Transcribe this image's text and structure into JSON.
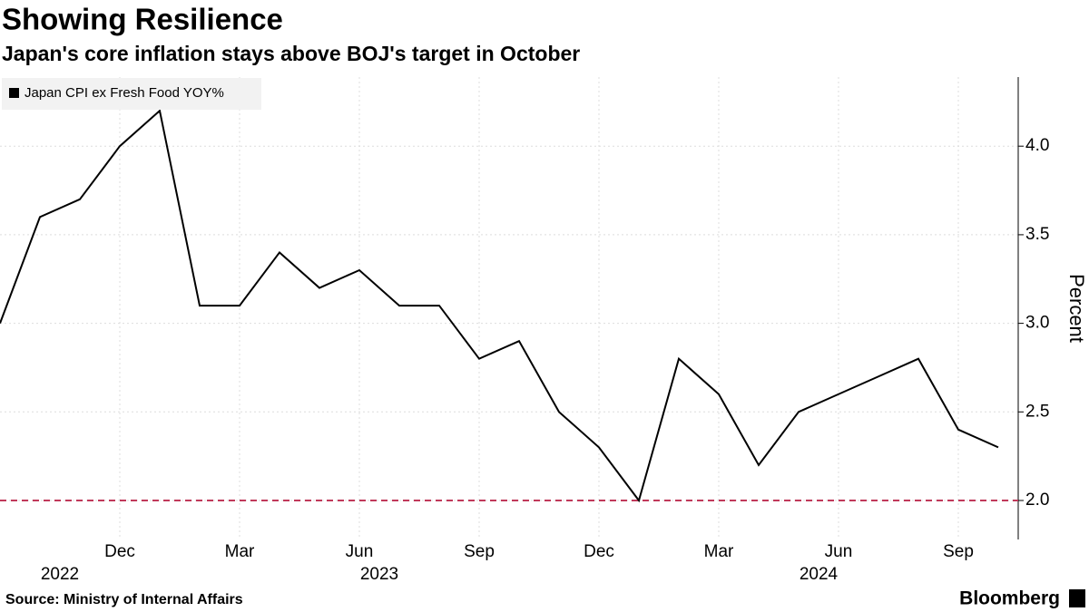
{
  "chart_data": {
    "type": "line",
    "title": "Showing Resilience",
    "subtitle": "Japan's core inflation stays above BOJ's target in October",
    "categories": [
      null,
      null,
      null,
      "Dec",
      null,
      null,
      "Mar",
      null,
      null,
      "Jun",
      null,
      null,
      "Sep",
      null,
      null,
      "Dec",
      null,
      null,
      "Mar",
      null,
      null,
      "Jun",
      null,
      null,
      "Sep",
      null
    ],
    "year_labels": [
      null,
      "2022",
      null,
      null,
      null,
      null,
      null,
      null,
      null,
      "2023",
      null,
      null,
      null,
      null,
      null,
      null,
      null,
      null,
      null,
      null,
      "2024",
      null,
      null,
      null,
      null,
      null
    ],
    "series": [
      {
        "name": "Japan CPI ex Fresh Food YOY%",
        "color": "#000000",
        "values": [
          3.0,
          3.6,
          3.7,
          4.0,
          4.2,
          3.1,
          3.1,
          3.4,
          3.2,
          3.3,
          3.1,
          3.1,
          2.8,
          2.9,
          2.5,
          2.3,
          2.0,
          2.8,
          2.6,
          2.2,
          2.5,
          2.6,
          2.7,
          2.8,
          2.4,
          2.3
        ]
      }
    ],
    "ylim": [
      1.78,
      4.39
    ],
    "yticks": [
      {
        "value": 2,
        "label": "2.0"
      },
      {
        "value": 2.5,
        "label": "2.5"
      },
      {
        "value": 3,
        "label": "3.0"
      },
      {
        "value": 3.5,
        "label": "3.5"
      },
      {
        "value": 4,
        "label": "4.0"
      }
    ],
    "y_axis_label": "Percent",
    "reference_line": {
      "value": 2,
      "color": "#c0395a"
    },
    "grid": true,
    "source": "Source: Ministry of Internal Affairs",
    "brand": "Bloomberg"
  }
}
